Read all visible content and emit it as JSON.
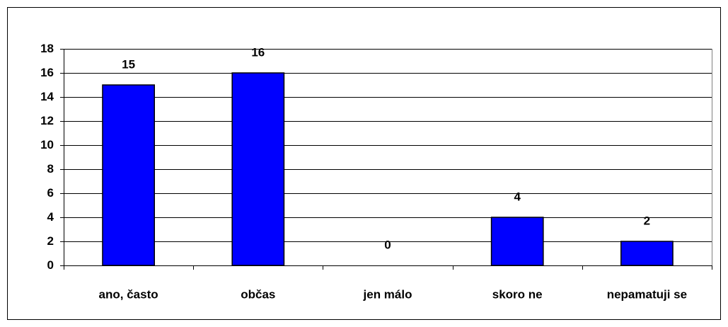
{
  "chart_data": {
    "type": "bar",
    "categories": [
      "ano, často",
      "občas",
      "jen málo",
      "skoro ne",
      "nepamatuji se"
    ],
    "values": [
      15,
      16,
      0,
      4,
      2
    ],
    "color": "#0000ff",
    "ylim": [
      0,
      18
    ],
    "yticks": [
      0,
      2,
      4,
      6,
      8,
      10,
      12,
      14,
      16,
      18
    ],
    "grid": true
  }
}
